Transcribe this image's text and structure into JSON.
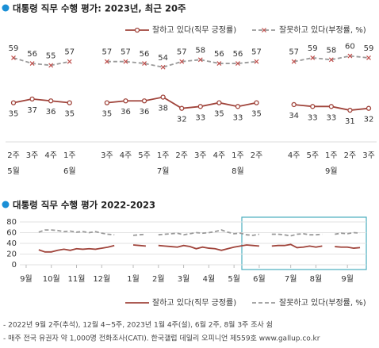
{
  "chart_data": [
    {
      "type": "line",
      "title": "대통령 직무 수행 평가: 2023년, 최근 20주",
      "categories": [
        "2주",
        "3주",
        "4주",
        "1주",
        null,
        "3주",
        "4주",
        "5주",
        "1주",
        "2주",
        "3주",
        "4주",
        "1주",
        "2주",
        null,
        "4주",
        "5주",
        "1주",
        "2주",
        "3주"
      ],
      "months": [
        "5월",
        null,
        null,
        "6월",
        null,
        null,
        null,
        null,
        "7월",
        null,
        null,
        null,
        "8월",
        null,
        null,
        null,
        null,
        "9월",
        null,
        null
      ],
      "ylim": [
        20,
        70
      ],
      "series": [
        {
          "name": "잘하고 있다(직무 긍정률)",
          "color": "#a0443b",
          "line_style": "solid",
          "marker": "circle",
          "label_position": "below",
          "values": [
            35,
            37,
            36,
            35,
            null,
            35,
            36,
            36,
            38,
            32,
            33,
            35,
            33,
            35,
            null,
            34,
            33,
            33,
            31,
            32
          ]
        },
        {
          "name": "잘못하고 있다(부정률, %)",
          "color": "#9a9a9a",
          "line_style": "dashed",
          "marker": "x",
          "label_position": "above",
          "values": [
            59,
            56,
            55,
            57,
            null,
            57,
            57,
            56,
            54,
            57,
            58,
            56,
            56,
            57,
            null,
            57,
            59,
            58,
            60,
            59
          ]
        }
      ]
    },
    {
      "type": "line",
      "title": "대통령 직무 수행 평가 2022-2023",
      "x": [
        0,
        1,
        2,
        3,
        4,
        5,
        6,
        7,
        8,
        9,
        10,
        11,
        12,
        13,
        14,
        15,
        16,
        17,
        18,
        19,
        20,
        21,
        22,
        23,
        24,
        25,
        26,
        27,
        28,
        29,
        30,
        31,
        32,
        33,
        34,
        35,
        36,
        37,
        38,
        39,
        40,
        41,
        42,
        43,
        44,
        45,
        46,
        47,
        48,
        49,
        50,
        51,
        52,
        53
      ],
      "xlim": [
        -1,
        54
      ],
      "xticks": [
        {
          "value": 0,
          "label": "9월"
        },
        {
          "value": 4,
          "label": "10월"
        },
        {
          "value": 8,
          "label": "11월"
        },
        {
          "value": 12,
          "label": "12월"
        },
        {
          "value": 17,
          "label": "1월"
        },
        {
          "value": 21,
          "label": "2월"
        },
        {
          "value": 25,
          "label": "3월"
        },
        {
          "value": 29,
          "label": "4월"
        },
        {
          "value": 33,
          "label": "5월"
        },
        {
          "value": 37,
          "label": "6월"
        },
        {
          "value": 42,
          "label": "7월"
        },
        {
          "value": 46,
          "label": "8월"
        },
        {
          "value": 51,
          "label": "9월"
        }
      ],
      "ylim": [
        0,
        80
      ],
      "yticks": [
        0,
        20,
        40,
        60,
        80
      ],
      "grid": true,
      "series": [
        {
          "name": "잘하고 있다(직무 긍정률)",
          "color": "#a0443b",
          "line_style": "solid",
          "values": [
            31,
            null,
            28,
            24,
            24,
            27,
            29,
            27,
            30,
            29,
            30,
            29,
            31,
            33,
            36,
            null,
            null,
            37,
            36,
            35,
            null,
            36,
            35,
            34,
            33,
            36,
            34,
            30,
            33,
            31,
            30,
            27,
            30,
            33,
            35,
            37,
            36,
            35,
            null,
            35,
            36,
            36,
            38,
            32,
            33,
            35,
            33,
            35,
            null,
            34,
            33,
            33,
            31,
            32
          ]
        },
        {
          "name": "잘못하고 있다(부정률, %)",
          "color": "#9a9a9a",
          "line_style": "dashed",
          "values": [
            60,
            null,
            61,
            65,
            65,
            64,
            62,
            63,
            61,
            62,
            60,
            62,
            59,
            57,
            56,
            null,
            null,
            55,
            56,
            57,
            null,
            56,
            57,
            58,
            59,
            56,
            58,
            60,
            59,
            60,
            62,
            65,
            61,
            58,
            59,
            56,
            55,
            57,
            null,
            57,
            57,
            56,
            54,
            57,
            58,
            56,
            56,
            57,
            null,
            57,
            59,
            58,
            60,
            59
          ]
        }
      ]
    }
  ],
  "notes": [
    "- 2022년 9월 2주(추석), 12월 4~5주, 2023년 1월 4주(설), 6월 2주, 8월 3주 조사 쉼",
    "- 매주 전국 유권자 약 1,000명 전화조사(CATI). 한국갤럽 데일리 오피니언 제559호 www.gallup.co.kr"
  ]
}
